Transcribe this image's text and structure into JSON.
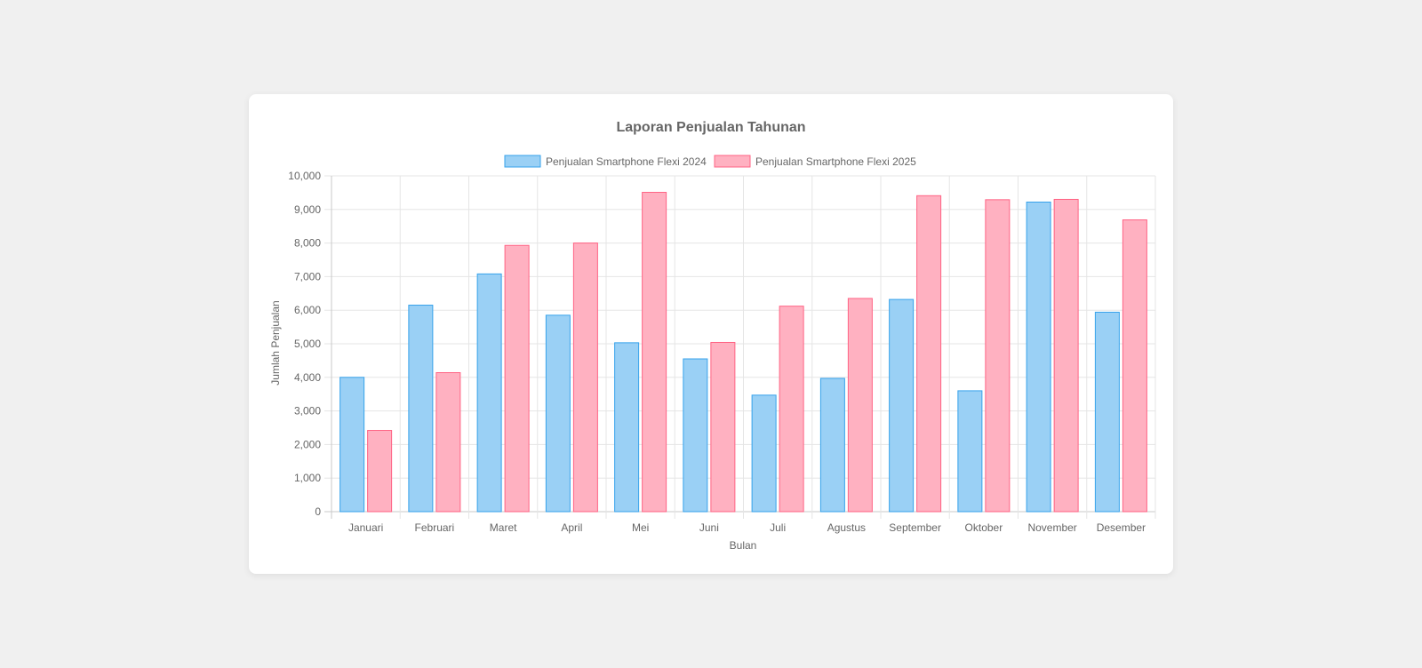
{
  "chart_data": {
    "type": "bar",
    "title": "Laporan Penjualan Tahunan",
    "xlabel": "Bulan",
    "ylabel": "Jumlah Penjualan",
    "ylim": [
      0,
      10000
    ],
    "yticks": [
      "0",
      "1,000",
      "2,000",
      "3,000",
      "4,000",
      "5,000",
      "6,000",
      "7,000",
      "8,000",
      "9,000",
      "10,000"
    ],
    "grid": true,
    "legend_position": "top",
    "categories": [
      "Januari",
      "Februari",
      "Maret",
      "April",
      "Mei",
      "Juni",
      "Juli",
      "Agustus",
      "September",
      "Oktober",
      "November",
      "Desember"
    ],
    "series": [
      {
        "name": "Penjualan Smartphone Flexi 2024",
        "fill": "#9ad0f5",
        "stroke": "#36a2eb",
        "values": [
          4000,
          6150,
          7080,
          5850,
          5030,
          4550,
          3470,
          3970,
          6320,
          3600,
          9220,
          5940
        ]
      },
      {
        "name": "Penjualan Smartphone Flexi 2025",
        "fill": "#ffb1c1",
        "stroke": "#ff6384",
        "values": [
          2420,
          4140,
          7930,
          8000,
          9510,
          5040,
          6120,
          6350,
          9410,
          9290,
          9300,
          8690
        ]
      }
    ]
  }
}
